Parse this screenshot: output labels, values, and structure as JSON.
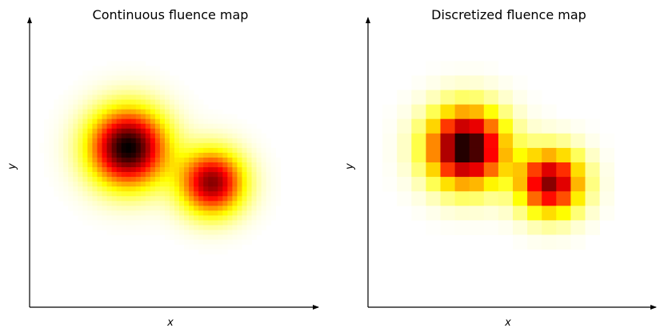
{
  "chart_data": [
    {
      "type": "heatmap",
      "title": "Continuous fluence map",
      "xlabel": "x",
      "ylabel": "y",
      "ticks": "none",
      "grid": false,
      "legend": "none",
      "colormap": "hot_r",
      "xlim": [
        0,
        1
      ],
      "ylim": [
        0,
        1
      ],
      "sources": [
        {
          "cx": 0.34,
          "cy": 0.55,
          "sigma": 0.09,
          "peak": 1.0
        },
        {
          "cx": 0.63,
          "cy": 0.43,
          "sigma": 0.075,
          "peak": 0.8
        }
      ]
    },
    {
      "type": "heatmap",
      "title": "Discretized fluence map",
      "xlabel": "x",
      "ylabel": "y",
      "ticks": "none",
      "grid": false,
      "legend": "none",
      "colormap": "hot_r",
      "xlim": [
        0,
        1
      ],
      "ylim": [
        0,
        1
      ],
      "grid_cells": 20,
      "sources": [
        {
          "cx": 0.34,
          "cy": 0.55,
          "sigma": 0.09,
          "peak": 1.0
        },
        {
          "cx": 0.63,
          "cy": 0.43,
          "sigma": 0.075,
          "peak": 0.8
        }
      ]
    }
  ]
}
